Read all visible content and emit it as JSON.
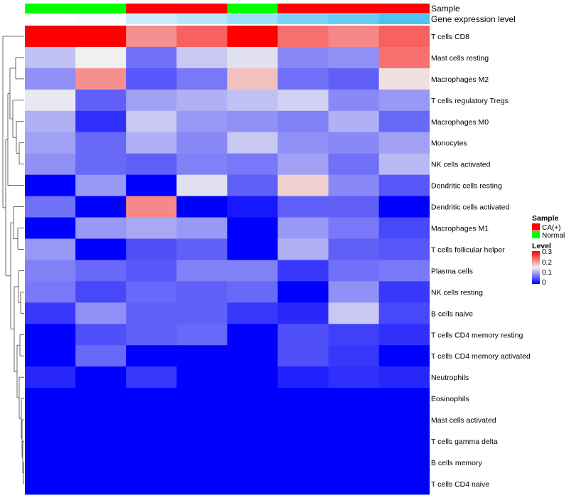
{
  "chart_data": {
    "type": "heatmap",
    "annotation_labels": {
      "sample": "Sample",
      "gene_expression": "Gene expression level"
    },
    "sample_groups": [
      "Normal",
      "Normal",
      "CA(+)",
      "CA(+)",
      "Normal",
      "CA(+)",
      "CA(+)",
      "CA(+)"
    ],
    "gene_expression_levels": [
      0.0,
      0.05,
      0.3,
      0.4,
      0.55,
      0.75,
      0.85,
      1.0
    ],
    "rows": [
      "T cells CD8",
      "Mast cells resting",
      "Macrophages M2",
      "T cells regulatory  Tregs",
      "Macrophages M0",
      "Monocytes",
      "NK cells activated",
      "Dendritic cells resting",
      "Dendritic cells activated",
      "Macrophages M1",
      "T cells follicular helper",
      "Plasma cells",
      "NK cells resting",
      "B cells naive",
      "T cells CD4 memory resting",
      "T cells CD4 memory activated",
      "Neutrophils",
      "Eosinophils",
      "Mast cells activated",
      "T cells gamma delta",
      "B cells memory",
      "T cells CD4 naive"
    ],
    "values": [
      [
        0.3,
        0.3,
        0.21,
        0.24,
        0.3,
        0.23,
        0.215,
        0.24
      ],
      [
        0.12,
        0.15,
        0.07,
        0.125,
        0.14,
        0.085,
        0.09,
        0.23
      ],
      [
        0.09,
        0.21,
        0.055,
        0.075,
        0.18,
        0.07,
        0.06,
        0.16
      ],
      [
        0.145,
        0.06,
        0.1,
        0.11,
        0.12,
        0.13,
        0.085,
        0.095
      ],
      [
        0.11,
        0.03,
        0.125,
        0.095,
        0.09,
        0.08,
        0.11,
        0.065
      ],
      [
        0.1,
        0.065,
        0.11,
        0.085,
        0.125,
        0.09,
        0.085,
        0.1
      ],
      [
        0.09,
        0.065,
        0.06,
        0.08,
        0.075,
        0.1,
        0.07,
        0.115
      ],
      [
        0.0,
        0.095,
        0.0,
        0.14,
        0.06,
        0.17,
        0.085,
        0.055
      ],
      [
        0.07,
        0.0,
        0.215,
        0.0,
        0.015,
        0.06,
        0.06,
        0.0
      ],
      [
        0.0,
        0.095,
        0.105,
        0.095,
        0.0,
        0.095,
        0.075,
        0.045
      ],
      [
        0.095,
        0.0,
        0.05,
        0.06,
        0.0,
        0.11,
        0.06,
        0.055
      ],
      [
        0.08,
        0.065,
        0.055,
        0.08,
        0.08,
        0.035,
        0.07,
        0.075
      ],
      [
        0.075,
        0.045,
        0.065,
        0.06,
        0.065,
        0.0,
        0.09,
        0.035
      ],
      [
        0.035,
        0.09,
        0.06,
        0.06,
        0.035,
        0.025,
        0.125,
        0.045
      ],
      [
        0.0,
        0.05,
        0.06,
        0.065,
        0.0,
        0.05,
        0.04,
        0.03
      ],
      [
        0.0,
        0.065,
        0.0,
        0.0,
        0.0,
        0.05,
        0.035,
        0.0
      ],
      [
        0.025,
        0.0,
        0.035,
        0.0,
        0.0,
        0.02,
        0.03,
        0.025
      ],
      [
        0.0,
        0.0,
        0.0,
        0.0,
        0.0,
        0.0,
        0.0,
        0.0
      ],
      [
        0.0,
        0.0,
        0.0,
        0.0,
        0.0,
        0.0,
        0.0,
        0.0
      ],
      [
        0.0,
        0.0,
        0.0,
        0.0,
        0.0,
        0.0,
        0.0,
        0.0
      ],
      [
        0.0,
        0.0,
        0.0,
        0.0,
        0.0,
        0.0,
        0.0,
        0.0
      ],
      [
        0.0,
        0.0,
        0.0,
        0.0,
        0.0,
        0.0,
        0.0,
        0.0
      ]
    ],
    "color_scale": {
      "min": 0,
      "mid": 0.15,
      "max": 0.3,
      "low": "#0000ff",
      "mid_color": "#f0f0f0",
      "high": "#ff0000"
    },
    "row_dendrogram": true,
    "legend": {
      "position": "right",
      "sample_title": "Sample",
      "sample_entries": [
        {
          "label": "CA(+)",
          "color": "#ff0000"
        },
        {
          "label": "Normal",
          "color": "#00ff00"
        }
      ],
      "level_title": "Level",
      "level_ticks": [
        "0.3",
        "0.2",
        "0.1",
        "0"
      ]
    },
    "sample_colors": {
      "CA(+)": "#ff0000",
      "Normal": "#00ff00"
    },
    "gene_expression_colors": {
      "low": "#ffffff",
      "high": "#4dc3f0"
    }
  }
}
